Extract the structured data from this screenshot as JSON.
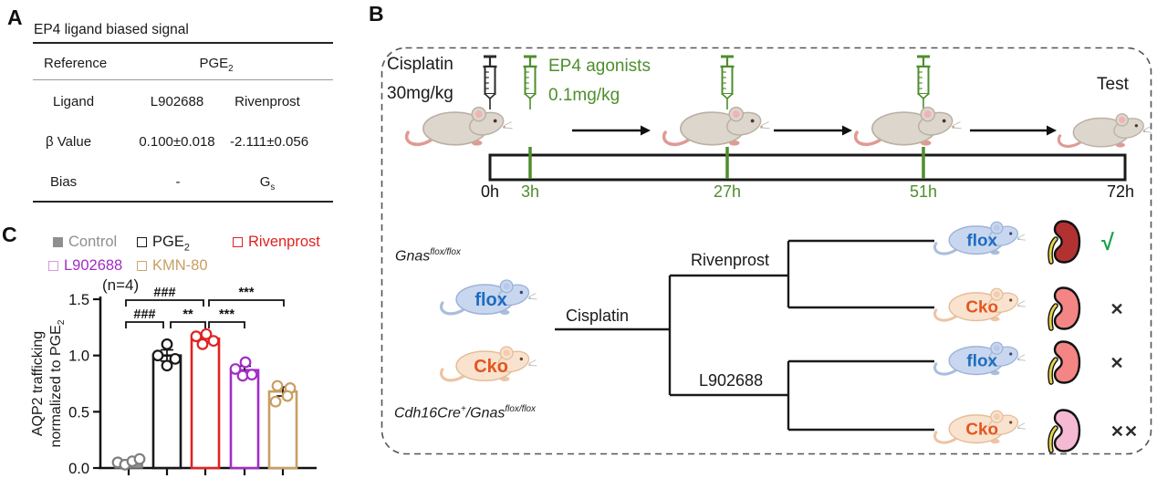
{
  "figure": {
    "panel_a_label": "A",
    "panel_b_label": "B",
    "panel_c_label": "C"
  },
  "panel_a": {
    "title": "EP4 ligand biased signal",
    "reference_label": "Reference",
    "reference_value": "PGE",
    "reference_value_sub": "2",
    "ligand_label": "Ligand",
    "ligand_col1": "L902688",
    "ligand_col2": "Rivenprost",
    "beta_label": "β Value",
    "beta_col1": "0.100±0.018",
    "beta_col2": "-2.111±0.056",
    "bias_label": "Bias",
    "bias_col1": "-",
    "bias_col2": "G",
    "bias_col2_sub": "s"
  },
  "panel_b": {
    "cisplatin_label_line1": "Cisplatin",
    "cisplatin_label_line2": "30mg/kg",
    "agonist_label_line1": "EP4 agonists",
    "agonist_label_line2": "0.1mg/kg",
    "test_label": "Test",
    "timeline_ticks": [
      {
        "label": "0h",
        "green": false
      },
      {
        "label": "3h",
        "green": true
      },
      {
        "label": "27h",
        "green": true
      },
      {
        "label": "51h",
        "green": true
      },
      {
        "label": "72h",
        "green": false
      }
    ],
    "genotype_flox_main": "Gnas",
    "genotype_flox_sup": "flox/flox",
    "genotype_cko_part1": "Cdh16Cre",
    "genotype_cko_sup1": "+",
    "genotype_cko_part2": "/Gnas",
    "genotype_cko_sup2": "flox/flox",
    "tree_root_label": "Cisplatin",
    "branch_top_label": "Rivenprost",
    "branch_bottom_label": "L902688",
    "mouse_labels": {
      "flox": "flox",
      "cko": "Cko"
    },
    "outcomes": [
      {
        "mouse": "flox",
        "kidney_color": "#b23232",
        "mark": "√",
        "mark_color": "#19a24a"
      },
      {
        "mouse": "Cko",
        "kidney_color": "#f48585",
        "mark": "✕",
        "mark_color": "#2b2b2b"
      },
      {
        "mouse": "flox",
        "kidney_color": "#f48585",
        "mark": "✕",
        "mark_color": "#2b2b2b"
      },
      {
        "mouse": "Cko",
        "kidney_color": "#f6b9d4",
        "mark": "✕✕",
        "mark_color": "#2b2b2b"
      }
    ]
  },
  "chart_data": {
    "type": "bar",
    "n_label": "(n=4)",
    "ylabel_line1": "AQP2 trafficking",
    "ylabel_line2": "normalized to PGE",
    "ylabel_sub": "2",
    "ylim": [
      0,
      1.5
    ],
    "yticks": [
      "0.0",
      "0.5",
      "1.0",
      "1.5"
    ],
    "grid": false,
    "legend_position": "top",
    "categories": [
      "Control",
      "PGE2",
      "Rivenprost",
      "L902688",
      "KMN-80"
    ],
    "series": [
      {
        "name": "AQP2 trafficking normalized to PGE2",
        "values": [
          0.05,
          1.0,
          1.15,
          0.87,
          0.68
        ]
      }
    ],
    "errors": [
      0.02,
      0.05,
      0.025,
      0.035,
      0.04
    ],
    "points": [
      [
        0.05,
        0.03,
        0.06,
        0.08
      ],
      [
        1.1,
        1.0,
        0.97,
        0.91
      ],
      [
        1.17,
        1.19,
        1.1,
        1.13
      ],
      [
        0.88,
        0.94,
        0.82,
        0.83
      ],
      [
        0.73,
        0.71,
        0.59,
        0.64
      ]
    ],
    "legend": [
      {
        "label": "Control",
        "color": "#8f8f8f",
        "swatch": "#8f8f8f",
        "filled": true
      },
      {
        "label": "PGE",
        "sub": "2",
        "color": "#1a1a1a",
        "swatch": "#1a1a1a",
        "filled": false
      },
      {
        "label": "Rivenprost",
        "color": "#e02322",
        "swatch": "#e02322",
        "filled": false
      },
      {
        "label": "L902688",
        "color": "#a22cc8",
        "swatch": "#d49ae0",
        "filled": false
      },
      {
        "label": "KMN-80",
        "color": "#c89e62",
        "swatch": "#cfa76c",
        "filled": false
      }
    ],
    "significance": [
      {
        "from": 0,
        "to": 2,
        "label": "###",
        "level": 2
      },
      {
        "from": 2,
        "to": 4,
        "label": "***",
        "level": 2
      },
      {
        "from": 0,
        "to": 1,
        "label": "###",
        "level": 1
      },
      {
        "from": 1,
        "to": 2,
        "label": "**",
        "level": 1
      },
      {
        "from": 2,
        "to": 3,
        "label": "***",
        "level": 1
      }
    ]
  },
  "colors": {
    "green": "#4e8e2c",
    "black": "#1a1a1a",
    "red": "#e02322",
    "purple": "#a22cc8",
    "tan": "#c89e62",
    "gray": "#8f8f8f",
    "flox_blue": "#1d6cc0",
    "cko_orange": "#e4551f",
    "check_green": "#19a24a"
  }
}
